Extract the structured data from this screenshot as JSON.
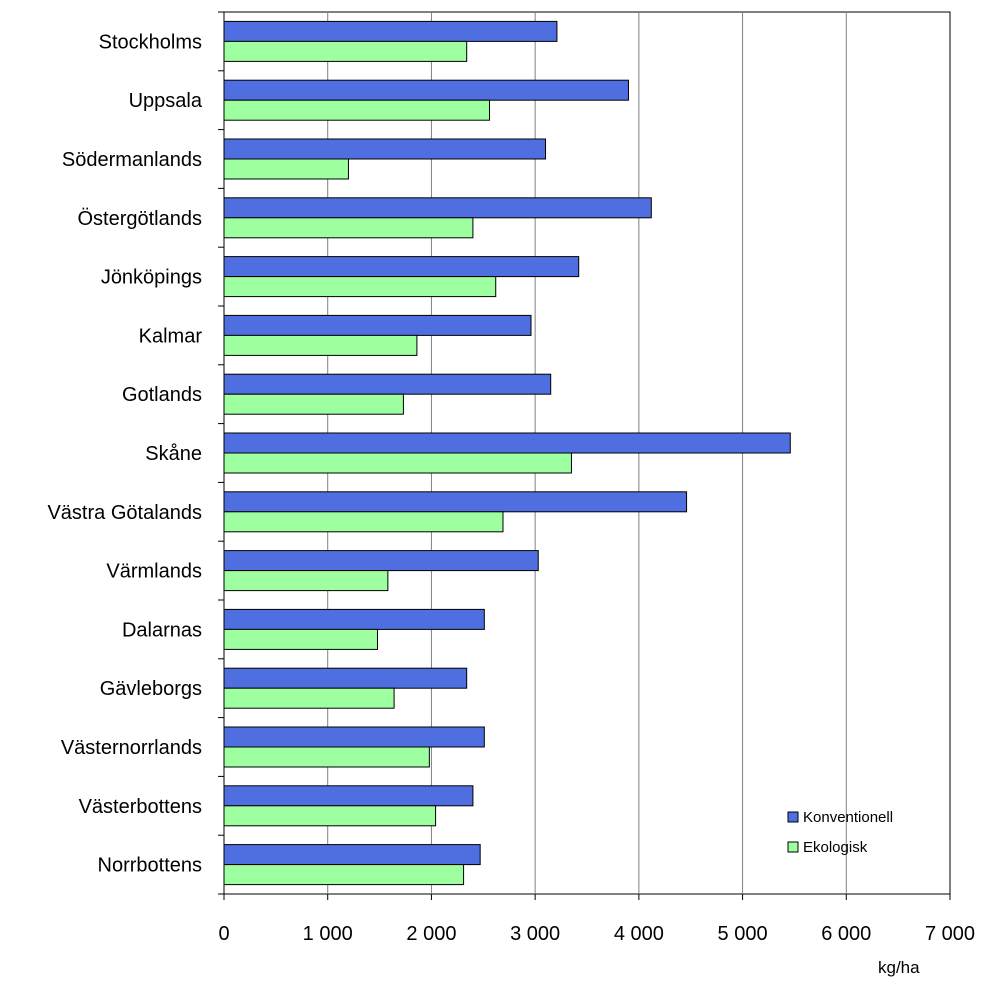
{
  "chart_data": {
    "type": "bar",
    "orientation": "horizontal",
    "categories": [
      "Stockholms",
      "Uppsala",
      "Södermanlands",
      "Östergötlands",
      "Jönköpings",
      "Kalmar",
      "Gotlands",
      "Skåne",
      "Västra Götalands",
      "Värmlands",
      "Dalarnas",
      "Gävleborgs",
      "Västernorrlands",
      "Västerbottens",
      "Norrbottens"
    ],
    "series": [
      {
        "name": "Konventionell",
        "color": "#4f6fe0",
        "values": [
          3210,
          3900,
          3100,
          4120,
          3420,
          2960,
          3150,
          5460,
          4460,
          3030,
          2510,
          2340,
          2510,
          2400,
          2470
        ]
      },
      {
        "name": "Ekologisk",
        "color": "#9effa0",
        "values": [
          2340,
          2560,
          1200,
          2400,
          2620,
          1860,
          1730,
          3350,
          2690,
          1580,
          1480,
          1640,
          1980,
          2040,
          2310
        ]
      }
    ],
    "xticks": [
      "0",
      "1 000",
      "2 000",
      "3 000",
      "4 000",
      "5 000",
      "6 000",
      "7 000"
    ],
    "xlim": [
      0,
      7000
    ],
    "xlabel": "kg/ha",
    "grid": "vertical",
    "legend_position": "bottom-right"
  }
}
